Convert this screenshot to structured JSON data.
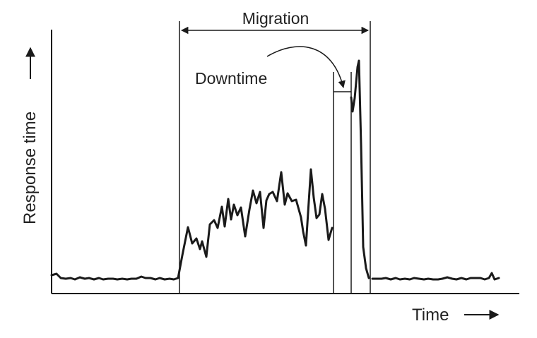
{
  "chart_data": {
    "type": "line",
    "xlabel": "Time",
    "ylabel": "Response time",
    "annotations": {
      "migration": "Migration",
      "downtime": "Downtime"
    },
    "axis_arrows": true,
    "grid": false,
    "line_color": "#1a1a1a",
    "series": [
      {
        "points": [
          [
            73,
            390
          ],
          [
            80,
            388
          ],
          [
            86,
            394
          ],
          [
            93,
            395
          ],
          [
            100,
            394
          ],
          [
            106,
            396
          ],
          [
            113,
            393
          ],
          [
            120,
            395
          ],
          [
            126,
            394
          ],
          [
            133,
            396
          ],
          [
            140,
            394
          ],
          [
            146,
            396
          ],
          [
            153,
            395
          ],
          [
            160,
            395
          ],
          [
            166,
            396
          ],
          [
            173,
            395
          ],
          [
            180,
            396
          ],
          [
            186,
            395
          ],
          [
            193,
            395
          ],
          [
            200,
            392
          ],
          [
            206,
            394
          ],
          [
            213,
            394
          ],
          [
            220,
            396
          ],
          [
            226,
            394
          ],
          [
            233,
            396
          ],
          [
            240,
            395
          ],
          [
            246,
            396
          ],
          [
            252,
            394
          ],
          [
            258,
            362
          ],
          [
            266,
            322
          ],
          [
            272,
            345
          ],
          [
            278,
            338
          ],
          [
            283,
            353
          ],
          [
            286,
            342
          ],
          [
            292,
            364
          ],
          [
            297,
            318
          ],
          [
            303,
            312
          ],
          [
            308,
            323
          ],
          [
            314,
            293
          ],
          [
            318,
            321
          ],
          [
            323,
            282
          ],
          [
            327,
            311
          ],
          [
            331,
            290
          ],
          [
            336,
            305
          ],
          [
            341,
            294
          ],
          [
            347,
            335
          ],
          [
            353,
            297
          ],
          [
            358,
            270
          ],
          [
            363,
            288
          ],
          [
            368,
            272
          ],
          [
            373,
            323
          ],
          [
            377,
            284
          ],
          [
            381,
            275
          ],
          [
            386,
            272
          ],
          [
            392,
            285
          ],
          [
            398,
            244
          ],
          [
            403,
            290
          ],
          [
            407,
            274
          ],
          [
            413,
            285
          ],
          [
            419,
            283
          ],
          [
            426,
            308
          ],
          [
            429,
            328
          ],
          [
            433,
            348
          ],
          [
            437,
            286
          ],
          [
            440,
            240
          ],
          [
            444,
            280
          ],
          [
            448,
            309
          ],
          [
            452,
            304
          ],
          [
            456,
            275
          ],
          [
            460,
            296
          ],
          [
            465,
            340
          ],
          [
            470,
            323
          ]
        ]
      },
      {
        "points": [
          [
            497,
            138
          ],
          [
            499,
            158
          ],
          [
            502,
            139
          ],
          [
            506,
            95
          ],
          [
            508,
            86
          ],
          [
            511,
            205
          ],
          [
            514,
            350
          ],
          [
            518,
            380
          ],
          [
            522,
            394
          ]
        ]
      },
      {
        "points": [
          [
            527,
            395
          ],
          [
            533,
            395
          ],
          [
            540,
            395
          ],
          [
            546,
            394
          ],
          [
            553,
            396
          ],
          [
            560,
            394
          ],
          [
            566,
            396
          ],
          [
            573,
            395
          ],
          [
            580,
            396
          ],
          [
            586,
            394
          ],
          [
            593,
            395
          ],
          [
            600,
            396
          ],
          [
            606,
            395
          ],
          [
            613,
            396
          ],
          [
            620,
            396
          ],
          [
            626,
            395
          ],
          [
            633,
            393
          ],
          [
            640,
            395
          ],
          [
            646,
            396
          ],
          [
            653,
            394
          ],
          [
            660,
            396
          ],
          [
            666,
            394
          ],
          [
            673,
            394
          ],
          [
            680,
            394
          ],
          [
            686,
            396
          ],
          [
            692,
            394
          ],
          [
            696,
            387
          ],
          [
            700,
            396
          ],
          [
            706,
            394
          ]
        ]
      }
    ]
  }
}
